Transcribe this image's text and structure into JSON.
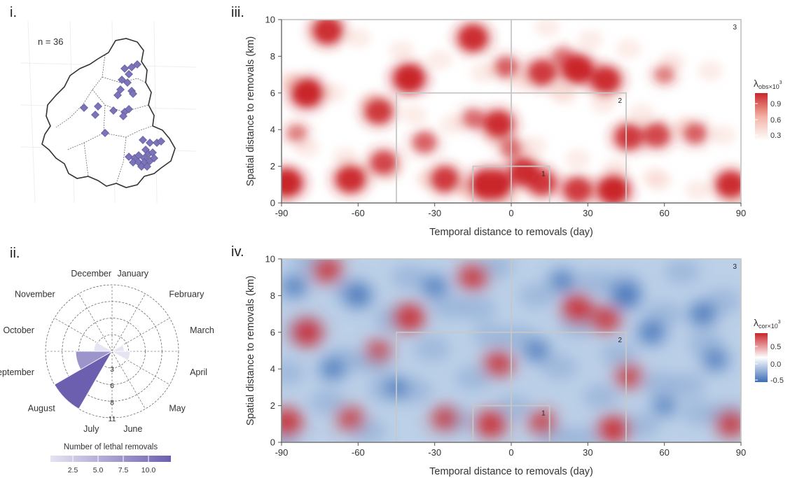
{
  "panels": {
    "i": {
      "label": "i.",
      "n_label": "n = 36"
    },
    "ii": {
      "label": "ii."
    },
    "iii": {
      "label": "iii."
    },
    "iv": {
      "label": "iv."
    }
  },
  "colors": {
    "map_points": "#7b74b8",
    "rose_scale": [
      "#e6e3f2",
      "#c4bfe0",
      "#9c95cc",
      "#6d5fb0"
    ],
    "heat_red": "#c9252a",
    "heat_blue": "#3d6db5",
    "box_lines": "#c7c7c7"
  },
  "chart_data": [
    {
      "type": "map",
      "panel": "i",
      "annotation": "n = 36",
      "points_count": 36
    },
    {
      "type": "polar-bar",
      "panel": "ii",
      "categories": [
        "January",
        "February",
        "March",
        "April",
        "May",
        "June",
        "July",
        "August",
        "September",
        "October",
        "November",
        "December"
      ],
      "values": [
        0,
        0,
        2,
        3,
        0,
        0,
        0,
        11,
        6,
        3,
        0,
        0
      ],
      "radial_ticks": [
        3,
        6,
        8,
        11
      ],
      "legend": {
        "title": "Number of lethal removals",
        "ticks": [
          "2.5",
          "5.0",
          "7.5",
          "10.0"
        ]
      }
    },
    {
      "type": "heatmap",
      "panel": "iii",
      "xlabel": "Temporal distance to removals (day)",
      "ylabel": "Spatial distance to removals (km)",
      "xlim": [
        -90,
        90
      ],
      "ylim": [
        0,
        10
      ],
      "xticks": [
        "-90",
        "-60",
        "-30",
        "0",
        "30",
        "60",
        "90"
      ],
      "yticks": [
        "0",
        "2",
        "4",
        "6",
        "8",
        "10"
      ],
      "colorbar": {
        "title_main": "λ",
        "title_sub": "obs×10",
        "title_sup": "3",
        "ticks": [
          "0.9",
          "0.6",
          "0.3"
        ]
      },
      "windows": [
        {
          "label": "1",
          "x": [
            -15,
            15
          ],
          "y": [
            0,
            2
          ]
        },
        {
          "label": "2",
          "x": [
            -45,
            45
          ],
          "y": [
            0,
            6
          ]
        },
        {
          "label": "3",
          "x": [
            -90,
            90
          ],
          "y": [
            0,
            10
          ]
        }
      ],
      "hotspots": [
        {
          "x": -88,
          "y": 1.1,
          "v": 1.0
        },
        {
          "x": -80,
          "y": 6.0,
          "v": 1.0
        },
        {
          "x": -72,
          "y": 9.4,
          "v": 0.9
        },
        {
          "x": -63,
          "y": 1.3,
          "v": 0.9
        },
        {
          "x": -52,
          "y": 5.0,
          "v": 0.8
        },
        {
          "x": -50,
          "y": 2.2,
          "v": 0.7
        },
        {
          "x": -40,
          "y": 6.8,
          "v": 1.0
        },
        {
          "x": -34,
          "y": 3.3,
          "v": 0.5
        },
        {
          "x": -26,
          "y": 1.3,
          "v": 0.8
        },
        {
          "x": -15,
          "y": 9.0,
          "v": 0.9
        },
        {
          "x": -15,
          "y": 4.6,
          "v": 0.4
        },
        {
          "x": -10,
          "y": 1.0,
          "v": 1.0
        },
        {
          "x": -6,
          "y": 1.0,
          "v": 1.0
        },
        {
          "x": -5,
          "y": 4.3,
          "v": 0.9
        },
        {
          "x": -2,
          "y": 7.4,
          "v": 0.5
        },
        {
          "x": 5,
          "y": 1.7,
          "v": 0.9
        },
        {
          "x": 12,
          "y": 7.1,
          "v": 0.8
        },
        {
          "x": 12,
          "y": 1.1,
          "v": 0.8
        },
        {
          "x": 26,
          "y": 7.3,
          "v": 1.0
        },
        {
          "x": 26,
          "y": 0.7,
          "v": 0.8
        },
        {
          "x": 37,
          "y": 6.7,
          "v": 0.9
        },
        {
          "x": 40,
          "y": 0.7,
          "v": 1.0
        },
        {
          "x": 46,
          "y": 3.6,
          "v": 0.8
        },
        {
          "x": 57,
          "y": 3.7,
          "v": 0.7
        },
        {
          "x": 72,
          "y": 3.8,
          "v": 0.5
        },
        {
          "x": 86,
          "y": 1.0,
          "v": 0.9
        },
        {
          "x": -84,
          "y": 3.8,
          "v": 0.3
        },
        {
          "x": 0,
          "y": 3.0,
          "v": 0.4
        },
        {
          "x": 20,
          "y": 8.0,
          "v": 0.3
        },
        {
          "x": 60,
          "y": 7.0,
          "v": 0.3
        }
      ]
    },
    {
      "type": "heatmap",
      "panel": "iv",
      "xlabel": "Temporal distance to removals (day)",
      "ylabel": "Spatial distance to removals (km)",
      "xlim": [
        -90,
        90
      ],
      "ylim": [
        0,
        10
      ],
      "xticks": [
        "-90",
        "-60",
        "-30",
        "0",
        "30",
        "60",
        "90"
      ],
      "yticks": [
        "0",
        "2",
        "4",
        "6",
        "8",
        "10"
      ],
      "colorbar": {
        "title_main": "λ",
        "title_sub": "cor×10",
        "title_sup": "3",
        "ticks": [
          "0.5",
          "0.0",
          "-0.5"
        ]
      },
      "windows": [
        {
          "label": "1",
          "x": [
            -15,
            15
          ],
          "y": [
            0,
            2
          ]
        },
        {
          "label": "2",
          "x": [
            -45,
            45
          ],
          "y": [
            0,
            6
          ]
        },
        {
          "label": "3",
          "x": [
            -90,
            90
          ],
          "y": [
            0,
            10
          ]
        }
      ],
      "hotspots": [
        {
          "x": -88,
          "y": 1.1,
          "v": 0.8
        },
        {
          "x": -80,
          "y": 6.0,
          "v": 0.8
        },
        {
          "x": -72,
          "y": 9.4,
          "v": 0.7
        },
        {
          "x": -63,
          "y": 1.3,
          "v": 0.6
        },
        {
          "x": -52,
          "y": 5.0,
          "v": 0.5
        },
        {
          "x": -40,
          "y": 6.8,
          "v": 0.8
        },
        {
          "x": -26,
          "y": 1.3,
          "v": 0.6
        },
        {
          "x": -15,
          "y": 9.0,
          "v": 0.7
        },
        {
          "x": -8,
          "y": 1.0,
          "v": 0.8
        },
        {
          "x": -5,
          "y": 4.3,
          "v": 0.7
        },
        {
          "x": 12,
          "y": 1.1,
          "v": 0.6
        },
        {
          "x": 26,
          "y": 7.3,
          "v": 0.8
        },
        {
          "x": 37,
          "y": 6.7,
          "v": 0.7
        },
        {
          "x": 40,
          "y": 0.7,
          "v": 0.8
        },
        {
          "x": 46,
          "y": 3.6,
          "v": 0.6
        },
        {
          "x": 86,
          "y": 1.0,
          "v": 0.7
        },
        {
          "x": -60,
          "y": 8.0,
          "v": -0.6
        },
        {
          "x": -70,
          "y": 4.0,
          "v": -0.5
        },
        {
          "x": -30,
          "y": 8.5,
          "v": -0.5
        },
        {
          "x": 10,
          "y": 5.0,
          "v": -0.5
        },
        {
          "x": 45,
          "y": 8.0,
          "v": -0.7
        },
        {
          "x": 55,
          "y": 6.0,
          "v": -0.6
        },
        {
          "x": 75,
          "y": 7.0,
          "v": -0.6
        },
        {
          "x": 80,
          "y": 4.5,
          "v": -0.5
        },
        {
          "x": 60,
          "y": 2.0,
          "v": -0.4
        },
        {
          "x": -45,
          "y": 3.0,
          "v": -0.4
        },
        {
          "x": 20,
          "y": 8.8,
          "v": -0.5
        },
        {
          "x": -85,
          "y": 8.5,
          "v": -0.5
        }
      ]
    }
  ]
}
